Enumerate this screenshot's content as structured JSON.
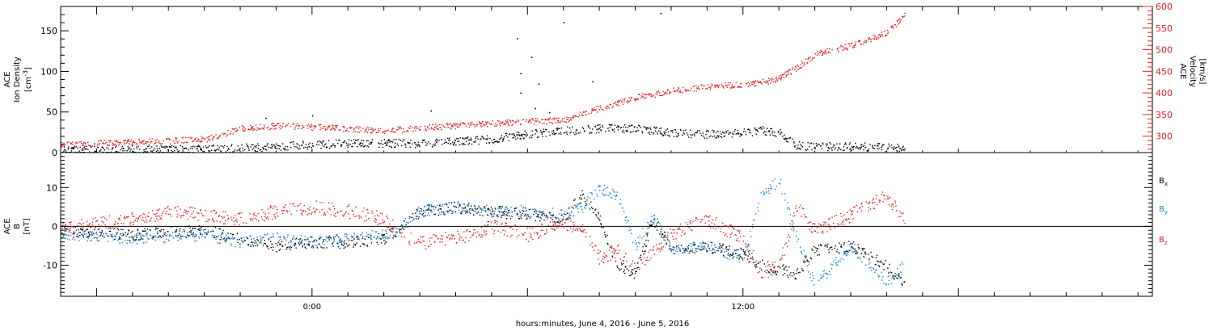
{
  "figure": {
    "xlabel": "hours:minutes, June  4, 2016 - June  5, 2016",
    "xticks": [
      {
        "t": 0,
        "label": "0:00"
      },
      {
        "t": 12,
        "label": "12:00"
      }
    ],
    "xrange": [
      -7,
      23.4
    ]
  },
  "colors": {
    "black": "#000000",
    "blue": "#1a82d6",
    "red": "#e02020"
  },
  "chart_data": [
    {
      "type": "scatter",
      "panel": "top",
      "ylabel_left": [
        "ACE",
        "Ion Density",
        "[cm^-3]"
      ],
      "ylabel_right": [
        "ACE",
        "Velocity",
        "[km/s]"
      ],
      "ylim_left": [
        0,
        180
      ],
      "ylim_right": [
        262,
        600
      ],
      "yticks_left": [
        0,
        50,
        100,
        150
      ],
      "yticks_right": [
        300,
        350,
        400,
        450,
        500,
        550,
        600
      ],
      "series": [
        {
          "color": "black",
          "axis": "left",
          "x": [
            -7,
            -5,
            -3,
            -2,
            -1,
            0,
            1,
            2,
            3,
            4,
            5,
            6,
            7,
            8,
            8.5,
            9,
            10,
            11,
            12,
            12.5,
            13,
            13.5,
            14,
            15,
            16,
            16.5
          ],
          "values": [
            4,
            4,
            5,
            6,
            8,
            10,
            12,
            12,
            12,
            14,
            17,
            23,
            27,
            30,
            31,
            30,
            25,
            23,
            25,
            28,
            25,
            9,
            8,
            8,
            7,
            6
          ],
          "noise": 5,
          "spikes": [
            {
              "x": 0.0,
              "v": 46
            },
            {
              "x": -1.3,
              "v": 43
            },
            {
              "x": 3.3,
              "v": 52
            },
            {
              "x": 5.7,
              "v": 141
            },
            {
              "x": 6.1,
              "v": 118
            },
            {
              "x": 7.0,
              "v": 161
            },
            {
              "x": 9.7,
              "v": 172
            },
            {
              "x": 5.8,
              "v": 98
            },
            {
              "x": 5.8,
              "v": 74
            },
            {
              "x": 6.3,
              "v": 85
            },
            {
              "x": 7.8,
              "v": 88
            },
            {
              "x": 6.2,
              "v": 55
            },
            {
              "x": 6.6,
              "v": 50
            }
          ]
        },
        {
          "color": "red",
          "axis": "right",
          "x": [
            -7,
            -5,
            -4,
            -2.9,
            -2,
            -1,
            0,
            1,
            2,
            3,
            4,
            5,
            6,
            7,
            8.2,
            9,
            10,
            11,
            12,
            12.9,
            13.5,
            14,
            15,
            16,
            16.5
          ],
          "values": [
            282,
            287,
            290,
            295,
            318,
            325,
            322,
            318,
            313,
            320,
            325,
            330,
            335,
            337,
            370,
            390,
            405,
            415,
            420,
            430,
            460,
            490,
            510,
            540,
            580
          ],
          "noise": 7,
          "spikes": []
        }
      ]
    },
    {
      "type": "scatter",
      "panel": "bottom",
      "ylabel_left": [
        "ACE",
        "B",
        "[nT]"
      ],
      "ylim": [
        -18,
        19
      ],
      "yticks": [
        -10,
        0,
        10
      ],
      "zero_line": true,
      "legend": [
        {
          "label": "B",
          "sub": "x",
          "color": "black"
        },
        {
          "label": "B",
          "sub": "y",
          "color": "blue"
        },
        {
          "label": "B",
          "sub": "z",
          "color": "red"
        }
      ],
      "series": [
        {
          "name": "Bx",
          "color": "black",
          "x": [
            -7,
            -5,
            -3,
            -2,
            -1,
            0,
            1,
            2,
            2.5,
            3,
            4,
            5,
            6,
            7,
            7.5,
            8,
            8.5,
            9,
            9.5,
            10,
            11,
            12,
            12.5,
            13,
            13.5,
            14,
            15,
            16,
            16.5
          ],
          "values": [
            -1,
            -2,
            -1,
            -3,
            -5,
            -4,
            -4,
            -3,
            0,
            4,
            5,
            4,
            3,
            2,
            8,
            2,
            -10,
            -12,
            2,
            -6,
            -5,
            -7,
            -10,
            -11,
            -12,
            -6,
            -5,
            -10,
            -15
          ],
          "noise": 1.5
        },
        {
          "name": "By",
          "color": "blue",
          "x": [
            -7,
            -5,
            -3,
            -2,
            -1,
            0,
            1,
            2,
            2.5,
            3,
            4,
            5,
            6,
            7,
            7.5,
            8,
            8.5,
            9,
            9.5,
            10,
            11,
            12,
            12.5,
            13,
            13.5,
            14,
            15,
            16,
            16.5
          ],
          "values": [
            -2,
            -3,
            -2,
            -4,
            -3,
            -4,
            -3,
            -2,
            0,
            4,
            5,
            4,
            4,
            3,
            5,
            10,
            8,
            -5,
            3,
            -6,
            -5,
            -8,
            8,
            12,
            -3,
            -15,
            -5,
            -14,
            -10
          ],
          "noise": 1.5
        },
        {
          "name": "Bz",
          "color": "red",
          "x": [
            -7,
            -6,
            -5,
            -4,
            -3,
            -2,
            -1,
            0,
            1,
            2,
            2.5,
            3,
            4,
            5,
            6,
            7,
            7.5,
            8,
            8.5,
            9,
            10,
            11,
            12,
            12.5,
            13,
            13.5,
            14,
            15,
            16,
            16.5
          ],
          "values": [
            -1,
            1,
            2,
            4,
            3,
            2,
            4,
            5,
            4,
            2,
            -2,
            -4,
            -3,
            0,
            -2,
            1,
            0,
            -8,
            -6,
            -10,
            -2,
            2,
            -3,
            -12,
            -10,
            5,
            -1,
            3,
            8,
            2
          ],
          "noise": 1.8
        }
      ]
    }
  ]
}
